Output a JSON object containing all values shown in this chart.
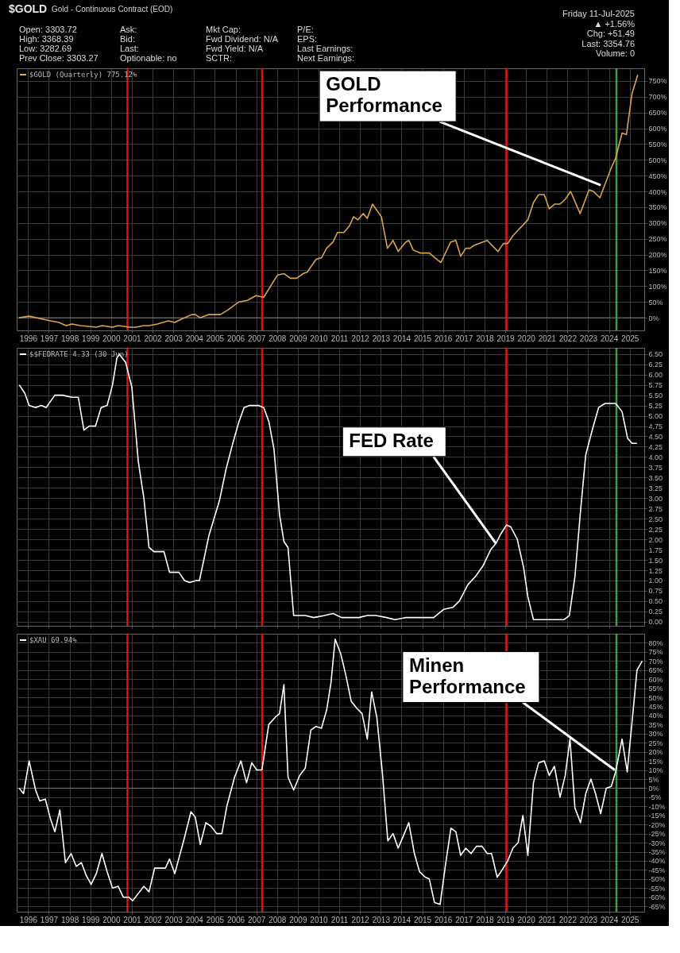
{
  "chart_data": [
    {
      "type": "line",
      "title": "$GOLD",
      "subtitle": "Gold - Continuous Contract (EOD)",
      "legend": "top left",
      "grid": true,
      "annotations": [
        "Open: 3303.72",
        "High: 3368.39",
        "Low: 3282.69",
        "Prev Close: 3303.27",
        "Ask:",
        "Bid:",
        "Last:",
        "Optionable: no",
        "Mkt Cap:",
        "Fwd Dividend: N/A",
        "Fwd Yield: N/A",
        "SCTR:",
        "P/E:",
        "EPS:",
        "Last Earnings:",
        "Next Earnings:",
        "Friday 11-Jul-2025",
        "▲ +1.56%",
        "Chg: +51.49",
        "Last: 3354.76",
        "Volume: 0",
        {
          "text": "GOLD\nPerformance",
          "x": 2023.6,
          "y": 420
        }
      ],
      "xlim": [
        1995.45,
        2025.7
      ],
      "xticks": [
        1996,
        1997,
        1998,
        1999,
        2000,
        2001,
        2002,
        2003,
        2004,
        2005,
        2006,
        2007,
        2008,
        2009,
        2010,
        2011,
        2012,
        2013,
        2014,
        2015,
        2016,
        2017,
        2018,
        2019,
        2020,
        2021,
        2022,
        2023,
        2024,
        2025
      ],
      "ylim": [
        -40,
        790
      ],
      "yticks": [
        {
          "value": 0,
          "label": "0%"
        },
        {
          "value": 50,
          "label": "50%"
        },
        {
          "value": 100,
          "label": "100%"
        },
        {
          "value": 150,
          "label": "150%"
        },
        {
          "value": 200,
          "label": "200%"
        },
        {
          "value": 250,
          "label": "250%"
        },
        {
          "value": 300,
          "label": "300%"
        },
        {
          "value": 350,
          "label": "350%"
        },
        {
          "value": 400,
          "label": "400%"
        },
        {
          "value": 450,
          "label": "450%"
        },
        {
          "value": 500,
          "label": "500%"
        },
        {
          "value": 550,
          "label": "550%"
        },
        {
          "value": 600,
          "label": "600%"
        },
        {
          "value": 650,
          "label": "650%"
        },
        {
          "value": 700,
          "label": "700%"
        },
        {
          "value": 750,
          "label": "750%"
        }
      ],
      "ref_lines": [
        {
          "axis": "y",
          "value": 0,
          "color": "#7a7a7a"
        },
        {
          "axis": "x",
          "value": 2000.79,
          "color": "#e01010"
        },
        {
          "axis": "x",
          "value": 2007.28,
          "color": "#e01010"
        },
        {
          "axis": "x",
          "value": 2019.06,
          "color": "#e01010"
        },
        {
          "axis": "x",
          "value": 2024.36,
          "color": "#3f9f3f"
        }
      ],
      "series": [
        {
          "name": "$GOLD (Quarterly) 775.12%",
          "color": "#d9a54a",
          "x": [
            1995.57,
            1996.05,
            1997.08,
            1997.49,
            1997.84,
            1998.11,
            1998.53,
            1999.29,
            1999.56,
            2000.07,
            2000.34,
            2000.9,
            2001.21,
            2001.58,
            2001.83,
            2002.24,
            2002.76,
            2003.07,
            2003.38,
            2003.89,
            2004.06,
            2004.3,
            2004.72,
            2005.03,
            2005.27,
            2005.64,
            2006.16,
            2006.57,
            2006.98,
            2007.36,
            2008.02,
            2008.33,
            2008.64,
            2008.95,
            2009.26,
            2009.46,
            2009.88,
            2010.14,
            2010.39,
            2010.7,
            2010.91,
            2011.22,
            2011.48,
            2011.69,
            2011.9,
            2012.15,
            2012.35,
            2012.6,
            2013.03,
            2013.32,
            2013.59,
            2013.84,
            2014.21,
            2014.35,
            2014.56,
            2014.89,
            2015.34,
            2015.61,
            2015.9,
            2016.37,
            2016.62,
            2016.85,
            2017.1,
            2017.3,
            2017.51,
            2018.13,
            2018.65,
            2018.91,
            2019.12,
            2019.37,
            2020.09,
            2020.36,
            2020.61,
            2020.88,
            2021.12,
            2021.39,
            2021.64,
            2021.89,
            2022.15,
            2022.61,
            2023.04,
            2023.25,
            2023.56,
            2024.11,
            2024.32,
            2024.63,
            2024.84,
            2025.11,
            2025.39
          ],
          "values": [
            0,
            5,
            -10,
            -15,
            -25,
            -20,
            -25,
            -30,
            -25,
            -30,
            -25,
            -30,
            -30,
            -25,
            -25,
            -20,
            -10,
            -15,
            -5,
            10,
            10,
            0,
            10,
            10,
            10,
            25,
            50,
            55,
            70,
            65,
            135,
            140,
            125,
            125,
            140,
            145,
            185,
            190,
            220,
            240,
            270,
            270,
            290,
            320,
            310,
            330,
            315,
            360,
            320,
            220,
            245,
            210,
            240,
            245,
            215,
            205,
            205,
            190,
            175,
            240,
            245,
            195,
            220,
            220,
            230,
            245,
            210,
            235,
            235,
            260,
            310,
            365,
            390,
            390,
            345,
            360,
            360,
            375,
            400,
            330,
            405,
            400,
            380,
            475,
            505,
            585,
            580,
            710,
            770
          ]
        }
      ]
    },
    {
      "type": "line",
      "legend": "top left",
      "grid": true,
      "tick_labels": "y",
      "annotations": [
        {
          "text": "FED Rate",
          "x": 2018.55,
          "y": 1.9
        }
      ],
      "xlim": [
        1995.45,
        2025.7
      ],
      "xticks": [
        1996,
        1997,
        1998,
        1999,
        2000,
        2001,
        2002,
        2003,
        2004,
        2005,
        2006,
        2007,
        2008,
        2009,
        2010,
        2011,
        2012,
        2013,
        2014,
        2015,
        2016,
        2017,
        2018,
        2019,
        2020,
        2021,
        2022,
        2023,
        2024,
        2025
      ],
      "ylim": [
        -0.1,
        6.65
      ],
      "yticks": [
        {
          "value": 0,
          "label": "0.00"
        },
        {
          "value": 0.25,
          "label": "0.25"
        },
        {
          "value": 0.5,
          "label": "0.50"
        },
        {
          "value": 0.75,
          "label": "0.75"
        },
        {
          "value": 1,
          "label": "1.00"
        },
        {
          "value": 1.25,
          "label": "1.25"
        },
        {
          "value": 1.5,
          "label": "1.50"
        },
        {
          "value": 1.75,
          "label": "1.75"
        },
        {
          "value": 2,
          "label": "2.00"
        },
        {
          "value": 2.25,
          "label": "2.25"
        },
        {
          "value": 2.5,
          "label": "2.50"
        },
        {
          "value": 2.75,
          "label": "2.75"
        },
        {
          "value": 3,
          "label": "3.00"
        },
        {
          "value": 3.25,
          "label": "3.25"
        },
        {
          "value": 3.5,
          "label": "3.50"
        },
        {
          "value": 3.75,
          "label": "3.75"
        },
        {
          "value": 4,
          "label": "4.00"
        },
        {
          "value": 4.25,
          "label": "4.25"
        },
        {
          "value": 4.5,
          "label": "4.50"
        },
        {
          "value": 4.75,
          "label": "4.75"
        },
        {
          "value": 5,
          "label": "5.00"
        },
        {
          "value": 5.25,
          "label": "5.25"
        },
        {
          "value": 5.5,
          "label": "5.50"
        },
        {
          "value": 5.75,
          "label": "5.75"
        },
        {
          "value": 6,
          "label": "6.00"
        },
        {
          "value": 6.25,
          "label": "6.25"
        },
        {
          "value": 6.5,
          "label": "6.50"
        }
      ],
      "ref_lines": [
        {
          "axis": "x",
          "value": 2000.79,
          "color": "#e01010"
        },
        {
          "axis": "x",
          "value": 2007.28,
          "color": "#e01010"
        },
        {
          "axis": "x",
          "value": 2019.06,
          "color": "#e01010"
        },
        {
          "axis": "x",
          "value": 2024.36,
          "color": "#3f9f3f"
        }
      ],
      "series": [
        {
          "name": "$$FEDRATE 4.33 (30 Jun)",
          "color": "#ffffff",
          "x": [
            1995.57,
            1995.84,
            1996.05,
            1996.36,
            1996.63,
            1996.87,
            1997.29,
            1997.66,
            1998.11,
            1998.42,
            1998.69,
            1998.94,
            1999.25,
            1999.52,
            1999.81,
            2000.07,
            2000.28,
            2000.39,
            2000.7,
            2001.0,
            2001.31,
            2001.58,
            2001.83,
            2002.07,
            2002.34,
            2002.55,
            2002.82,
            2003.07,
            2003.27,
            2003.54,
            2003.79,
            2004.1,
            2004.26,
            2004.72,
            2005.23,
            2005.54,
            2005.85,
            2006.16,
            2006.41,
            2006.68,
            2007.09,
            2007.36,
            2007.61,
            2007.85,
            2008.12,
            2008.33,
            2008.53,
            2008.8,
            2009.05,
            2009.36,
            2009.77,
            2010.29,
            2010.7,
            2011.11,
            2011.63,
            2011.94,
            2012.35,
            2012.76,
            2013.28,
            2013.69,
            2014.21,
            2014.73,
            2015.03,
            2015.55,
            2016.03,
            2016.48,
            2016.79,
            2017.2,
            2017.57,
            2017.92,
            2018.3,
            2018.55,
            2018.75,
            2019.06,
            2019.27,
            2019.58,
            2019.89,
            2020.09,
            2020.36,
            2020.71,
            2021.22,
            2021.84,
            2022.09,
            2022.36,
            2022.63,
            2022.88,
            2023.19,
            2023.5,
            2023.81,
            2024.32,
            2024.63,
            2024.9,
            2025.11,
            2025.35
          ],
          "values": [
            5.75,
            5.55,
            5.25,
            5.2,
            5.25,
            5.2,
            5.5,
            5.5,
            5.45,
            5.45,
            4.65,
            4.75,
            4.75,
            5.2,
            5.25,
            5.75,
            6.4,
            6.5,
            6.3,
            5.7,
            3.9,
            3.0,
            1.8,
            1.7,
            1.7,
            1.7,
            1.2,
            1.2,
            1.2,
            1.0,
            0.95,
            1.0,
            1.0,
            2.1,
            2.95,
            3.7,
            4.3,
            4.85,
            5.2,
            5.25,
            5.25,
            5.2,
            4.85,
            4.2,
            2.6,
            1.95,
            1.8,
            0.15,
            0.15,
            0.15,
            0.1,
            0.15,
            0.2,
            0.1,
            0.1,
            0.1,
            0.15,
            0.15,
            0.1,
            0.05,
            0.1,
            0.1,
            0.1,
            0.1,
            0.3,
            0.35,
            0.5,
            0.9,
            1.1,
            1.35,
            1.75,
            1.9,
            2.1,
            2.35,
            2.3,
            2.0,
            1.3,
            0.6,
            0.05,
            0.05,
            0.05,
            0.05,
            0.15,
            1.1,
            2.7,
            4.05,
            4.65,
            5.2,
            5.3,
            5.3,
            5.1,
            4.45,
            4.33,
            4.33
          ]
        }
      ]
    },
    {
      "type": "line",
      "legend": "top left",
      "grid": true,
      "annotations": [
        {
          "text": "Minen\nPerformance",
          "x": 2024.28,
          "y": 10
        }
      ],
      "xlim": [
        1995.45,
        2025.7
      ],
      "xticks": [
        1996,
        1997,
        1998,
        1999,
        2000,
        2001,
        2002,
        2003,
        2004,
        2005,
        2006,
        2007,
        2008,
        2009,
        2010,
        2011,
        2012,
        2013,
        2014,
        2015,
        2016,
        2017,
        2018,
        2019,
        2020,
        2021,
        2022,
        2023,
        2024,
        2025
      ],
      "ylim": [
        -68,
        85
      ],
      "yticks": [
        {
          "value": -65,
          "label": "-65%"
        },
        {
          "value": -60,
          "label": "-60%"
        },
        {
          "value": -55,
          "label": "-55%"
        },
        {
          "value": -50,
          "label": "-50%"
        },
        {
          "value": -45,
          "label": "-45%"
        },
        {
          "value": -40,
          "label": "-40%"
        },
        {
          "value": -35,
          "label": "-35%"
        },
        {
          "value": -30,
          "label": "-30%"
        },
        {
          "value": -25,
          "label": "-25%"
        },
        {
          "value": -20,
          "label": "-20%"
        },
        {
          "value": -15,
          "label": "-15%"
        },
        {
          "value": -10,
          "label": "-10%"
        },
        {
          "value": -5,
          "label": "-5%"
        },
        {
          "value": 0,
          "label": "0%"
        },
        {
          "value": 5,
          "label": "5%"
        },
        {
          "value": 10,
          "label": "10%"
        },
        {
          "value": 15,
          "label": "15%"
        },
        {
          "value": 20,
          "label": "20%"
        },
        {
          "value": 25,
          "label": "25%"
        },
        {
          "value": 30,
          "label": "30%"
        },
        {
          "value": 35,
          "label": "35%"
        },
        {
          "value": 40,
          "label": "40%"
        },
        {
          "value": 45,
          "label": "45%"
        },
        {
          "value": 50,
          "label": "50%"
        },
        {
          "value": 55,
          "label": "55%"
        },
        {
          "value": 60,
          "label": "60%"
        },
        {
          "value": 65,
          "label": "65%"
        },
        {
          "value": 70,
          "label": "70%"
        },
        {
          "value": 75,
          "label": "75%"
        },
        {
          "value": 80,
          "label": "80%"
        }
      ],
      "ref_lines": [
        {
          "axis": "y",
          "value": 0,
          "color": "#7a7a7a"
        },
        {
          "axis": "x",
          "value": 2000.79,
          "color": "#e01010"
        },
        {
          "axis": "x",
          "value": 2007.28,
          "color": "#e01010"
        },
        {
          "axis": "x",
          "value": 2019.06,
          "color": "#e01010"
        },
        {
          "axis": "x",
          "value": 2024.36,
          "color": "#3f9f3f"
        }
      ],
      "series": [
        {
          "name": "$XAU 69.94%",
          "color": "#ffffff",
          "x": [
            1995.57,
            1995.78,
            1996.05,
            1996.36,
            1996.56,
            1996.83,
            1997.08,
            1997.29,
            1997.53,
            1997.8,
            1998.07,
            1998.32,
            1998.57,
            1998.8,
            1999.04,
            1999.29,
            1999.56,
            1999.81,
            2000.07,
            2000.34,
            2000.59,
            2000.86,
            2001.04,
            2001.31,
            2001.58,
            2001.83,
            2002.1,
            2002.41,
            2002.62,
            2002.82,
            2003.07,
            2003.52,
            2003.85,
            2004.06,
            2004.3,
            2004.57,
            2004.82,
            2005.09,
            2005.34,
            2005.58,
            2005.95,
            2006.26,
            2006.53,
            2006.78,
            2007.02,
            2007.27,
            2007.6,
            2007.91,
            2008.12,
            2008.33,
            2008.53,
            2008.8,
            2009.09,
            2009.36,
            2009.63,
            2009.88,
            2010.14,
            2010.39,
            2010.6,
            2010.8,
            2011.07,
            2011.32,
            2011.57,
            2011.84,
            2012.1,
            2012.35,
            2012.56,
            2012.81,
            2013.08,
            2013.34,
            2013.59,
            2013.84,
            2014.1,
            2014.35,
            2014.62,
            2014.87,
            2015.14,
            2015.34,
            2015.59,
            2015.86,
            2016.11,
            2016.38,
            2016.62,
            2016.85,
            2017.1,
            2017.35,
            2017.61,
            2017.88,
            2018.13,
            2018.34,
            2018.61,
            2018.85,
            2019.12,
            2019.37,
            2019.62,
            2019.85,
            2020.09,
            2020.36,
            2020.61,
            2020.88,
            2021.12,
            2021.37,
            2021.64,
            2021.89,
            2022.12,
            2022.36,
            2022.63,
            2022.88,
            2023.13,
            2023.35,
            2023.6,
            2023.87,
            2024.11,
            2024.32,
            2024.63,
            2024.88,
            2025.15,
            2025.35,
            2025.6
          ],
          "values": [
            0,
            -3,
            15,
            -1,
            -7,
            -6,
            -17,
            -24,
            -12,
            -41,
            -36,
            -43,
            -41,
            -48,
            -53,
            -47,
            -36,
            -46,
            -55,
            -54,
            -60,
            -60,
            -62,
            -58,
            -54,
            -57,
            -44,
            -44,
            -44,
            -39,
            -47,
            -28,
            -13,
            -16,
            -31,
            -19,
            -21,
            -25,
            -25,
            -10,
            6,
            15,
            3,
            14,
            10,
            10,
            35,
            39,
            41,
            57,
            6,
            -1,
            7,
            11,
            32,
            34,
            33,
            43,
            58,
            82,
            74,
            62,
            48,
            44,
            41,
            27,
            53,
            39,
            8,
            -29,
            -25,
            -33,
            -26,
            -19,
            -36,
            -46,
            -49,
            -50,
            -63,
            -64,
            -43,
            -22,
            -24,
            -37,
            -33,
            -36,
            -32,
            -32,
            -36,
            -36,
            -49,
            -45,
            -40,
            -33,
            -30,
            -15,
            -37,
            3,
            14,
            15,
            7,
            12,
            -5,
            7,
            27,
            -11,
            -19,
            -3,
            5,
            -3,
            -14,
            0,
            1,
            9,
            27,
            9,
            41,
            65,
            70
          ]
        }
      ]
    }
  ]
}
